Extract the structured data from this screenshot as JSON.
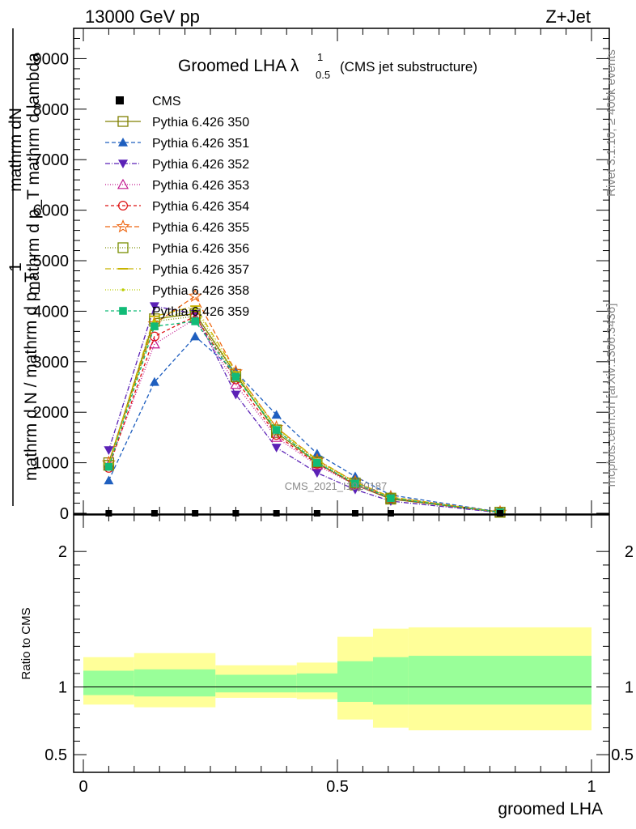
{
  "header": {
    "energy": "13000 GeV pp",
    "process": "Z+Jet"
  },
  "side": {
    "rivet": "Rivet 3.1.10, ≥ 400k events",
    "mcplots": "mcplots.cern.ch [arXiv:1306.3436]"
  },
  "watermark": "CMS_2021_I1920187",
  "chart_data": [
    {
      "type": "line",
      "title": "Groomed LHA",
      "title_symbol": "λ",
      "title_sup": "1",
      "title_sub": "0.5",
      "title_suffix": "(CMS jet substructure)",
      "ylabel": {
        "one": "1",
        "line1": "mathrm dN",
        "line2": "mathrm d p_T mathrm d lambda",
        "line3": "mathrm d N / mathrm d p_T"
      },
      "xlim": [
        0,
        1
      ],
      "ylim": [
        0,
        9600
      ],
      "yticks": [
        {
          "value": 0,
          "label": "0"
        },
        {
          "value": 1000,
          "label": "1000"
        },
        {
          "value": 2000,
          "label": "2000"
        },
        {
          "value": 3000,
          "label": "3000"
        },
        {
          "value": 4000,
          "label": "4000"
        },
        {
          "value": 5000,
          "label": "5000"
        },
        {
          "value": 6000,
          "label": "6000"
        },
        {
          "value": 7000,
          "label": "7000"
        },
        {
          "value": 8000,
          "label": "8000"
        },
        {
          "value": 9000,
          "label": "9000"
        }
      ],
      "x": [
        0.05,
        0.14,
        0.22,
        0.3,
        0.38,
        0.46,
        0.535,
        0.605,
        0.82
      ],
      "data": {
        "name": "CMS",
        "values": [
          0,
          0,
          0,
          0,
          0,
          0,
          0,
          0,
          0
        ]
      },
      "series": [
        {
          "name": "Pythia 6.426 350",
          "color": "#808000",
          "marker": "square-open",
          "dash": "",
          "values": [
            1000,
            3850,
            3950,
            2750,
            1600,
            1000,
            560,
            280,
            20
          ]
        },
        {
          "name": "Pythia 6.426 351",
          "color": "#1f5fbf",
          "marker": "triangle-up",
          "dash": "5,3",
          "values": [
            650,
            2600,
            3500,
            2800,
            1950,
            1180,
            730,
            360,
            25
          ]
        },
        {
          "name": "Pythia 6.426 352",
          "color": "#5b21b6",
          "marker": "triangle-down",
          "dash": "6,2,1,2",
          "values": [
            1250,
            4100,
            3950,
            2350,
            1300,
            800,
            470,
            240,
            15
          ]
        },
        {
          "name": "Pythia 6.426 353",
          "color": "#c2188f",
          "marker": "triangle-open",
          "dash": "1,2",
          "values": [
            950,
            3350,
            3850,
            2550,
            1500,
            950,
            560,
            290,
            20
          ]
        },
        {
          "name": "Pythia 6.426 354",
          "color": "#dd1111",
          "marker": "circle-open",
          "dash": "4,3",
          "values": [
            900,
            3500,
            3900,
            2650,
            1550,
            980,
            580,
            300,
            20
          ]
        },
        {
          "name": "Pythia 6.426 355",
          "color": "#ee6611",
          "marker": "star-open",
          "dash": "6,3",
          "values": [
            1000,
            3750,
            4300,
            2800,
            1700,
            1050,
            620,
            320,
            22
          ]
        },
        {
          "name": "Pythia 6.426 356",
          "color": "#7a8f00",
          "marker": "square-open",
          "dash": "1,2",
          "values": [
            950,
            3800,
            3900,
            2700,
            1650,
            1020,
            600,
            300,
            20
          ]
        },
        {
          "name": "Pythia 6.426 357",
          "color": "#c8b400",
          "marker": "dash",
          "dash": "7,3,1,3",
          "values": [
            980,
            3900,
            4100,
            2800,
            1700,
            1060,
            620,
            320,
            22
          ]
        },
        {
          "name": "Pythia 6.426 358",
          "color": "#bbcc00",
          "marker": "dot",
          "dash": "1,2",
          "values": [
            960,
            3800,
            4050,
            2750,
            1680,
            1040,
            610,
            310,
            20
          ]
        },
        {
          "name": "Pythia 6.426 359",
          "color": "#11bb77",
          "marker": "square",
          "dash": "4,3",
          "values": [
            920,
            3700,
            3800,
            2700,
            1650,
            1000,
            590,
            300,
            20
          ]
        }
      ]
    },
    {
      "type": "area",
      "ylabel": "Ratio to CMS",
      "xlabel": "groomed LHA",
      "xlim": [
        0,
        1
      ],
      "ylim": [
        0.37,
        2.27
      ],
      "yticks": [
        {
          "value": 0.5,
          "label": "0.5"
        },
        {
          "value": 1,
          "label": "1"
        },
        {
          "value": 2,
          "label": "2"
        }
      ],
      "xticks": [
        {
          "value": 0,
          "label": "0"
        },
        {
          "value": 0.5,
          "label": "0.5"
        },
        {
          "value": 1,
          "label": "1"
        }
      ],
      "bins": [
        {
          "lo": 0.0,
          "hi": 0.1,
          "inner": [
            0.94,
            1.12
          ],
          "outer": [
            0.87,
            1.22
          ]
        },
        {
          "lo": 0.1,
          "hi": 0.26,
          "inner": [
            0.93,
            1.13
          ],
          "outer": [
            0.85,
            1.25
          ]
        },
        {
          "lo": 0.26,
          "hi": 0.42,
          "inner": [
            0.96,
            1.09
          ],
          "outer": [
            0.92,
            1.16
          ]
        },
        {
          "lo": 0.42,
          "hi": 0.5,
          "inner": [
            0.96,
            1.1
          ],
          "outer": [
            0.91,
            1.18
          ]
        },
        {
          "lo": 0.5,
          "hi": 0.57,
          "inner": [
            0.89,
            1.19
          ],
          "outer": [
            0.76,
            1.37
          ]
        },
        {
          "lo": 0.57,
          "hi": 0.64,
          "inner": [
            0.87,
            1.22
          ],
          "outer": [
            0.7,
            1.43
          ]
        },
        {
          "lo": 0.64,
          "hi": 1.0,
          "inner": [
            0.87,
            1.23
          ],
          "outer": [
            0.68,
            1.44
          ]
        }
      ],
      "colors": {
        "inner": "#99ff99",
        "outer": "#ffff99"
      }
    }
  ]
}
